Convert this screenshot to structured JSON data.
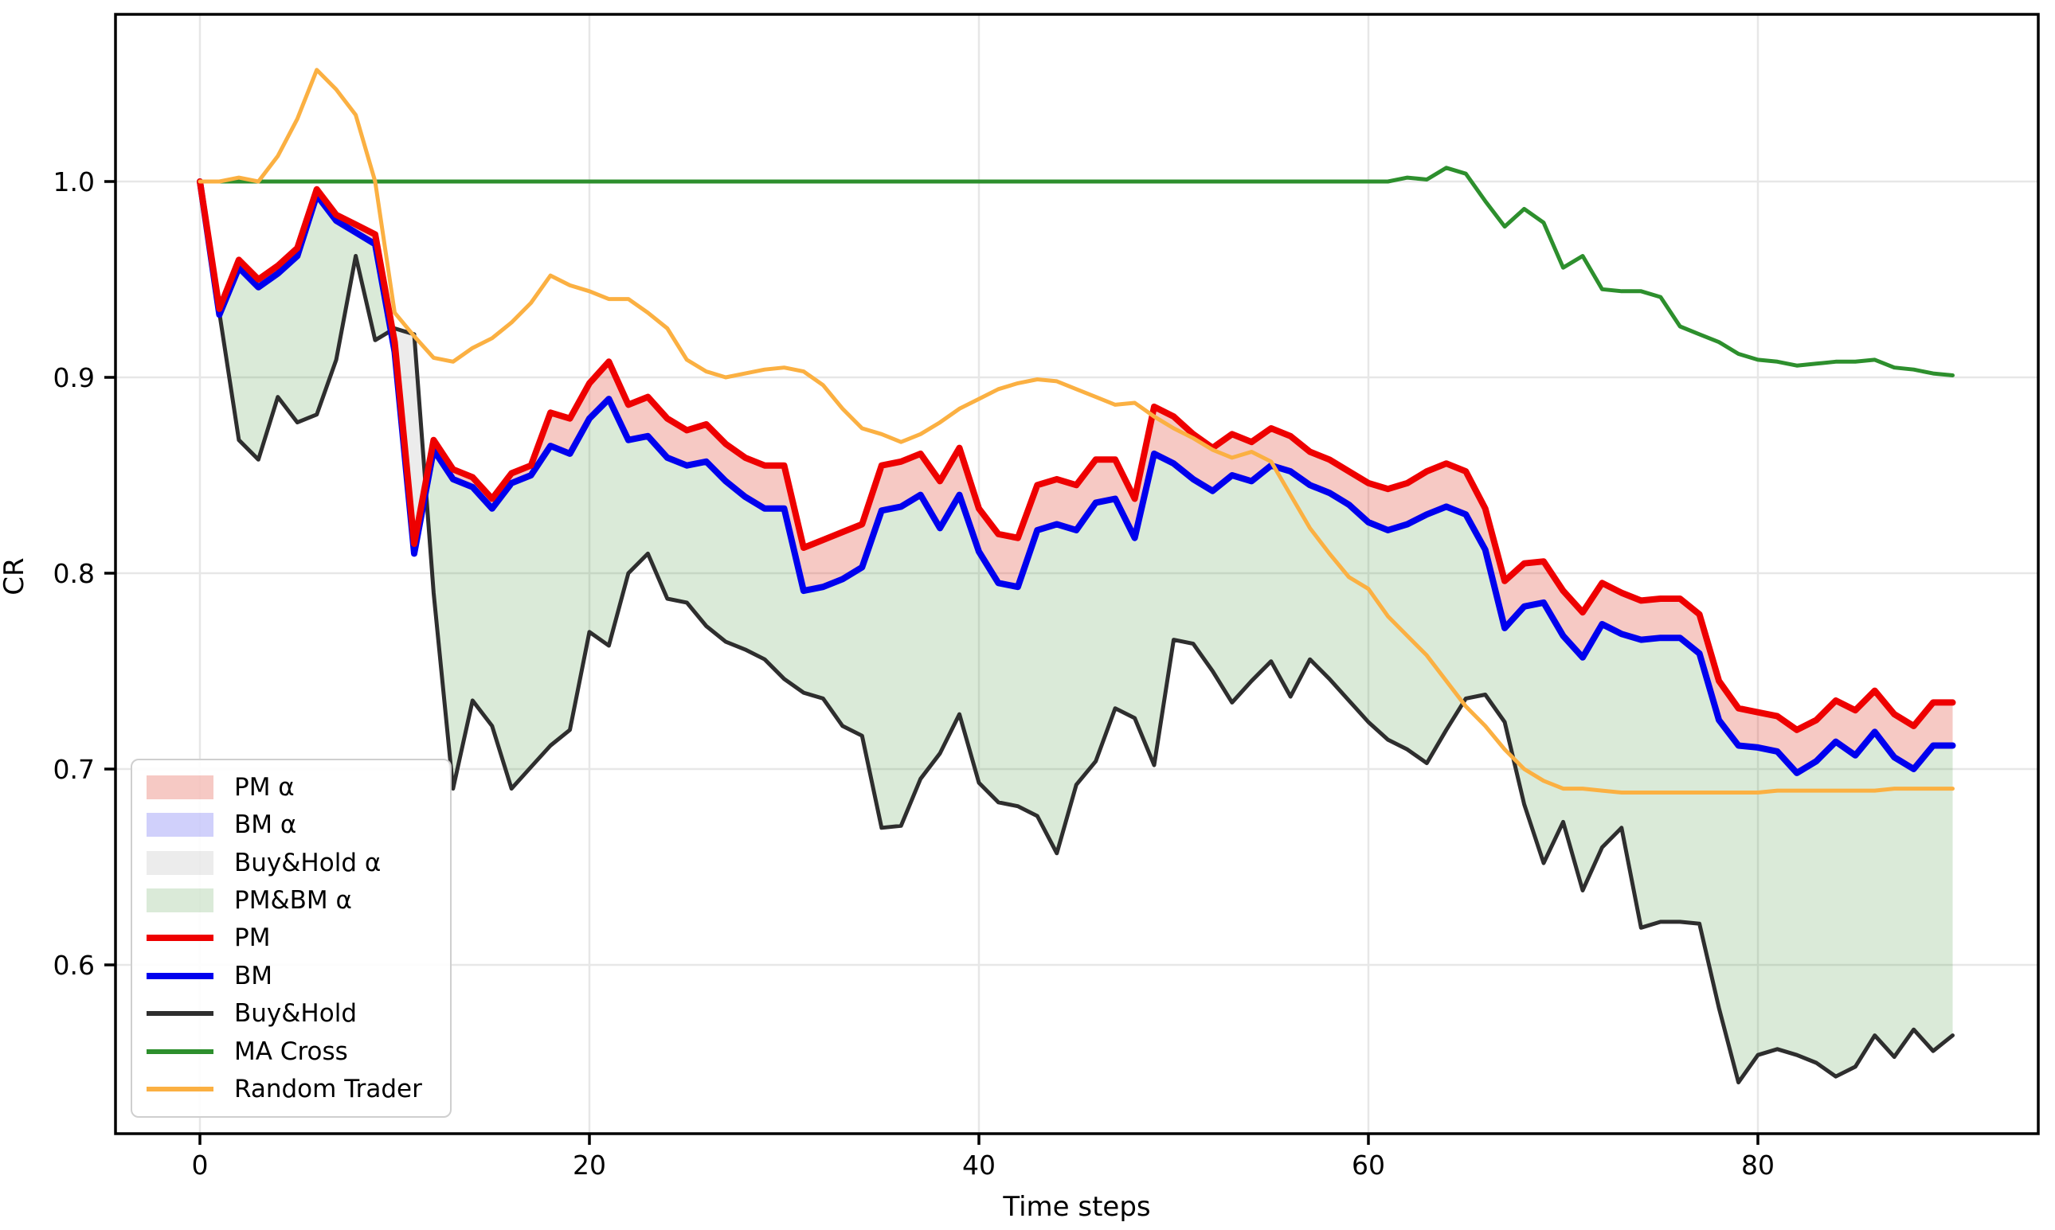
{
  "chart_data": {
    "type": "line",
    "title": "",
    "xlabel": "Time steps",
    "ylabel": "CR",
    "x_ticks": [
      0,
      20,
      40,
      60,
      80
    ],
    "y_ticks": [
      1.0,
      0.9,
      0.8,
      0.7,
      0.6
    ],
    "xlim": [
      -4.3,
      94.4
    ],
    "ylim": [
      0.514,
      1.085
    ],
    "grid": true,
    "legend_position": "center left",
    "colors": {
      "pm": "#ee0000",
      "bm": "#0000ee",
      "buyhold": "#2e2e2e",
      "ma_cross": "#2d8f2d",
      "random": "#fbb042",
      "pm_alpha": "rgba(220,40,20,0.25)",
      "bm_alpha": "rgba(60,60,240,0.24)",
      "buyhold_alpha": "rgba(150,150,150,0.18)",
      "pmbm_alpha": "rgba(70,150,60,0.20)"
    },
    "series": [
      {
        "key": "pm",
        "name": "PM",
        "width": 8,
        "values": [
          1.0,
          0.935,
          0.96,
          0.95,
          0.957,
          0.966,
          0.996,
          0.983,
          0.978,
          0.973,
          0.918,
          0.815,
          0.868,
          0.853,
          0.849,
          0.838,
          0.851,
          0.855,
          0.882,
          0.879,
          0.897,
          0.908,
          0.886,
          0.89,
          0.879,
          0.873,
          0.876,
          0.866,
          0.859,
          0.855,
          0.855,
          0.813,
          0.817,
          0.821,
          0.825,
          0.855,
          0.857,
          0.861,
          0.847,
          0.864,
          0.833,
          0.82,
          0.818,
          0.845,
          0.848,
          0.845,
          0.858,
          0.858,
          0.838,
          0.885,
          0.88,
          0.871,
          0.864,
          0.871,
          0.867,
          0.874,
          0.87,
          0.862,
          0.858,
          0.852,
          0.846,
          0.843,
          0.846,
          0.852,
          0.856,
          0.852,
          0.833,
          0.796,
          0.805,
          0.806,
          0.791,
          0.78,
          0.795,
          0.79,
          0.786,
          0.787,
          0.787,
          0.779,
          0.745,
          0.731,
          0.729,
          0.727,
          0.72,
          0.725,
          0.735,
          0.73,
          0.74,
          0.728,
          0.722,
          0.734,
          0.734
        ]
      },
      {
        "key": "bm",
        "name": "BM",
        "width": 8,
        "values": [
          1.0,
          0.932,
          0.956,
          0.946,
          0.953,
          0.962,
          0.993,
          0.98,
          0.974,
          0.968,
          0.913,
          0.81,
          0.863,
          0.848,
          0.844,
          0.833,
          0.846,
          0.85,
          0.865,
          0.861,
          0.879,
          0.889,
          0.868,
          0.87,
          0.859,
          0.855,
          0.857,
          0.847,
          0.839,
          0.833,
          0.833,
          0.791,
          0.793,
          0.797,
          0.803,
          0.832,
          0.834,
          0.84,
          0.823,
          0.84,
          0.811,
          0.795,
          0.793,
          0.822,
          0.825,
          0.822,
          0.836,
          0.838,
          0.818,
          0.861,
          0.856,
          0.848,
          0.842,
          0.85,
          0.847,
          0.855,
          0.852,
          0.845,
          0.841,
          0.835,
          0.826,
          0.822,
          0.825,
          0.83,
          0.834,
          0.83,
          0.812,
          0.772,
          0.783,
          0.785,
          0.768,
          0.757,
          0.774,
          0.769,
          0.766,
          0.767,
          0.767,
          0.759,
          0.725,
          0.712,
          0.711,
          0.709,
          0.698,
          0.704,
          0.714,
          0.707,
          0.719,
          0.706,
          0.7,
          0.712,
          0.712
        ]
      },
      {
        "key": "buyhold",
        "name": "Buy&Hold",
        "width": 5,
        "values": [
          1.0,
          0.933,
          0.868,
          0.858,
          0.89,
          0.877,
          0.881,
          0.909,
          0.962,
          0.919,
          0.925,
          0.922,
          0.79,
          0.69,
          0.735,
          0.722,
          0.69,
          0.701,
          0.712,
          0.72,
          0.77,
          0.763,
          0.8,
          0.81,
          0.787,
          0.785,
          0.773,
          0.765,
          0.761,
          0.756,
          0.746,
          0.739,
          0.736,
          0.722,
          0.717,
          0.67,
          0.671,
          0.695,
          0.708,
          0.728,
          0.693,
          0.683,
          0.681,
          0.676,
          0.657,
          0.692,
          0.704,
          0.731,
          0.726,
          0.702,
          0.766,
          0.764,
          0.75,
          0.734,
          0.745,
          0.755,
          0.737,
          0.756,
          0.746,
          0.735,
          0.724,
          0.715,
          0.71,
          0.703,
          0.72,
          0.736,
          0.738,
          0.724,
          0.682,
          0.652,
          0.673,
          0.638,
          0.66,
          0.67,
          0.619,
          0.622,
          0.622,
          0.621,
          0.578,
          0.54,
          0.554,
          0.557,
          0.554,
          0.55,
          0.543,
          0.548,
          0.564,
          0.553,
          0.567,
          0.556,
          0.564
        ]
      },
      {
        "key": "ma_cross",
        "name": "MA Cross",
        "width": 5,
        "values": [
          1.0,
          1.0,
          1.0,
          1.0,
          1.0,
          1.0,
          1.0,
          1.0,
          1.0,
          1.0,
          1.0,
          1.0,
          1.0,
          1.0,
          1.0,
          1.0,
          1.0,
          1.0,
          1.0,
          1.0,
          1.0,
          1.0,
          1.0,
          1.0,
          1.0,
          1.0,
          1.0,
          1.0,
          1.0,
          1.0,
          1.0,
          1.0,
          1.0,
          1.0,
          1.0,
          1.0,
          1.0,
          1.0,
          1.0,
          1.0,
          1.0,
          1.0,
          1.0,
          1.0,
          1.0,
          1.0,
          1.0,
          1.0,
          1.0,
          1.0,
          1.0,
          1.0,
          1.0,
          1.0,
          1.0,
          1.0,
          1.0,
          1.0,
          1.0,
          1.0,
          1.0,
          1.0,
          1.002,
          1.001,
          1.007,
          1.004,
          0.99,
          0.977,
          0.986,
          0.979,
          0.956,
          0.962,
          0.945,
          0.944,
          0.944,
          0.941,
          0.926,
          0.922,
          0.918,
          0.912,
          0.909,
          0.908,
          0.906,
          0.907,
          0.908,
          0.908,
          0.909,
          0.905,
          0.904,
          0.902,
          0.901
        ]
      },
      {
        "key": "random",
        "name": "Random Trader",
        "width": 5,
        "values": [
          1.0,
          1.0,
          1.002,
          1.0,
          1.013,
          1.032,
          1.057,
          1.047,
          1.034,
          1.0,
          0.933,
          0.921,
          0.91,
          0.908,
          0.915,
          0.92,
          0.928,
          0.938,
          0.952,
          0.947,
          0.944,
          0.94,
          0.94,
          0.933,
          0.925,
          0.909,
          0.903,
          0.9,
          0.902,
          0.904,
          0.905,
          0.903,
          0.896,
          0.884,
          0.874,
          0.871,
          0.867,
          0.871,
          0.877,
          0.884,
          0.889,
          0.894,
          0.897,
          0.899,
          0.898,
          0.894,
          0.89,
          0.886,
          0.887,
          0.88,
          0.874,
          0.869,
          0.863,
          0.859,
          0.862,
          0.857,
          0.84,
          0.823,
          0.81,
          0.798,
          0.792,
          0.778,
          0.768,
          0.758,
          0.745,
          0.732,
          0.722,
          0.71,
          0.7,
          0.694,
          0.69,
          0.69,
          0.689,
          0.688,
          0.688,
          0.688,
          0.688,
          0.688,
          0.688,
          0.688,
          0.688,
          0.689,
          0.689,
          0.689,
          0.689,
          0.689,
          0.689,
          0.69,
          0.69,
          0.69,
          0.69
        ]
      }
    ],
    "fills": [
      {
        "key": "pmbm_alpha",
        "name": "PM&BM α",
        "top": "bm",
        "bottom": "buyhold",
        "mode": "cond"
      },
      {
        "key": "buyhold_alpha",
        "name": "Buy&Hold α",
        "top": "buyhold",
        "bottom": "bm",
        "mode": "cond"
      },
      {
        "key": "pm_alpha",
        "name": "PM α",
        "top": "pm",
        "bottom": "bm",
        "mode": "band"
      }
    ],
    "legend": [
      {
        "type": "patch",
        "color": "pm_alpha",
        "label": "PM α"
      },
      {
        "type": "patch",
        "color": "bm_alpha",
        "label": "BM α"
      },
      {
        "type": "patch",
        "color": "buyhold_alpha",
        "label": "Buy&Hold α"
      },
      {
        "type": "patch",
        "color": "pmbm_alpha",
        "label": "PM&BM α"
      },
      {
        "type": "line",
        "color": "pm",
        "lw": 8,
        "label": "PM"
      },
      {
        "type": "line",
        "color": "bm",
        "lw": 8,
        "label": "BM"
      },
      {
        "type": "line",
        "color": "buyhold",
        "lw": 6,
        "label": "Buy&Hold"
      },
      {
        "type": "line",
        "color": "ma_cross",
        "lw": 6,
        "label": "MA Cross"
      },
      {
        "type": "line",
        "color": "random",
        "lw": 6,
        "label": "Random Trader"
      }
    ]
  }
}
